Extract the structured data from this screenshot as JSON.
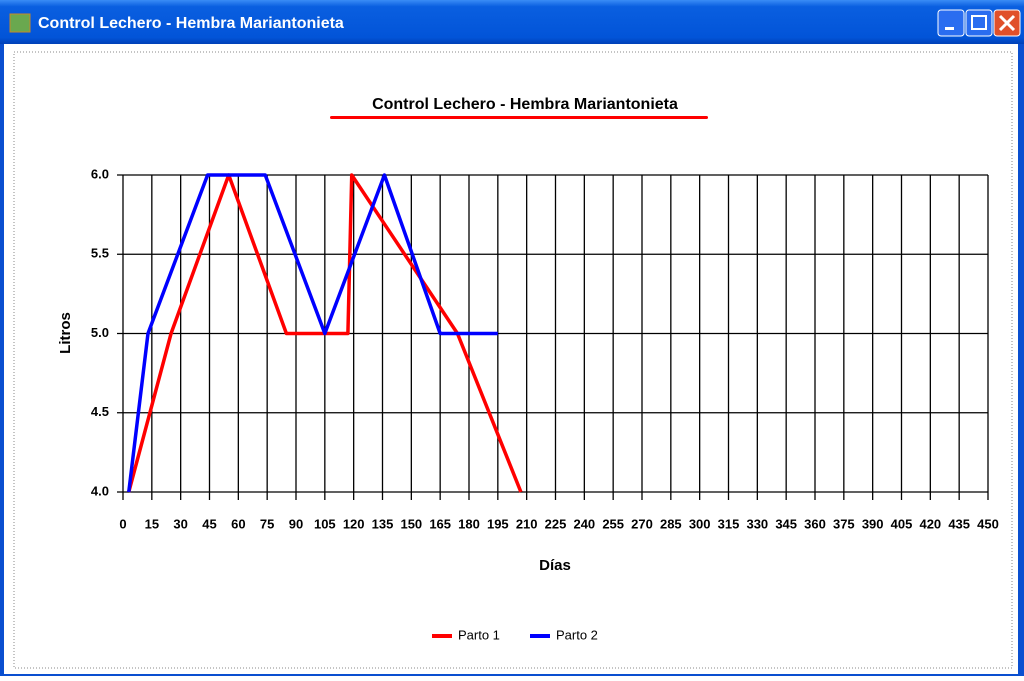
{
  "window": {
    "title": "Control Lechero - Hembra Mariantonieta"
  },
  "chart_data": {
    "type": "line",
    "title": "Control Lechero - Hembra Mariantonieta",
    "x_label": "Días",
    "y_label": "Litros",
    "series": [
      {
        "name": "Parto 1",
        "color": "#ff0000",
        "x": [
          3,
          25,
          55,
          85,
          117,
          119,
          174,
          207
        ],
        "values": [
          4.0,
          5.0,
          6.0,
          5.0,
          5.0,
          6.0,
          5.0,
          4.0
        ]
      },
      {
        "name": "Parto 2",
        "color": "#0000ff",
        "x": [
          3,
          13,
          44,
          74,
          105,
          136,
          165,
          195
        ],
        "values": [
          4.0,
          5.0,
          6.0,
          6.0,
          5.0,
          6.0,
          5.0,
          5.0
        ]
      }
    ],
    "xlim": [
      0,
      450
    ],
    "xticks": [
      0,
      15,
      30,
      45,
      60,
      75,
      90,
      105,
      120,
      135,
      150,
      165,
      180,
      195,
      210,
      225,
      240,
      255,
      270,
      285,
      300,
      315,
      330,
      345,
      360,
      375,
      390,
      405,
      420,
      435,
      450
    ],
    "ylim": [
      4.0,
      6.0
    ],
    "yticks": [
      {
        "value": 4.0,
        "label": "4.0"
      },
      {
        "value": 4.5,
        "label": "4.5"
      },
      {
        "value": 5.0,
        "label": "5.0"
      },
      {
        "value": 5.5,
        "label": "5.5"
      },
      {
        "value": 6.0,
        "label": "6.0"
      }
    ],
    "grid": true,
    "legend": "bottom"
  }
}
